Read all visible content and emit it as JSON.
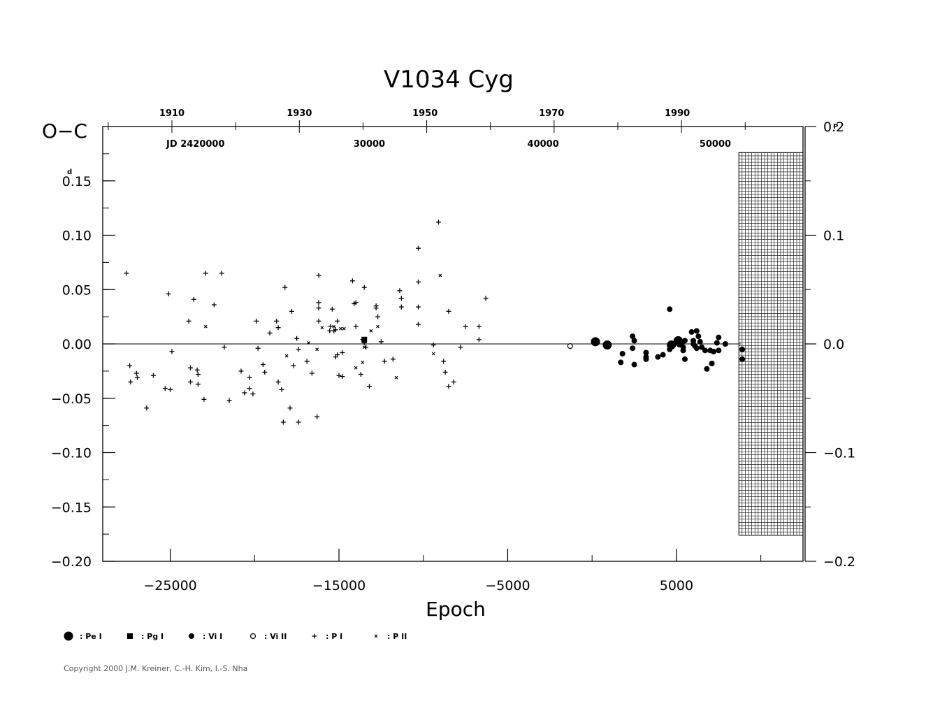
{
  "chart_data": {
    "type": "scatter",
    "title": "V1034  Cyg",
    "ylabel": "O−C",
    "ylabel_unit": "d",
    "right_unit": "P",
    "xlabel": "Epoch",
    "xlim": [
      -29000,
      12500
    ],
    "ylim": [
      -0.2,
      0.2
    ],
    "right_ylim": [
      -0.2,
      0.2
    ],
    "x_ticks": [
      {
        "value": -25000,
        "label": "−25000"
      },
      {
        "value": -15000,
        "label": "−15000"
      },
      {
        "value": -5000,
        "label": "−5000"
      },
      {
        "value": 5000,
        "label": "5000"
      }
    ],
    "y_ticks": [
      {
        "value": 0.15,
        "label": "0.15"
      },
      {
        "value": 0.1,
        "label": "0.10"
      },
      {
        "value": 0.05,
        "label": "0.05"
      },
      {
        "value": 0.0,
        "label": "0.00"
      },
      {
        "value": -0.05,
        "label": "−0.05"
      },
      {
        "value": -0.1,
        "label": "−0.10"
      },
      {
        "value": -0.15,
        "label": "−0.15"
      },
      {
        "value": -0.2,
        "label": "−0.20"
      }
    ],
    "right_ticks": [
      {
        "value": 0.2,
        "label": "0.2"
      },
      {
        "value": 0.1,
        "label": "0.1"
      },
      {
        "value": 0.0,
        "label": "0.0"
      },
      {
        "value": -0.1,
        "label": "−0.1"
      },
      {
        "value": -0.2,
        "label": "−0.2"
      }
    ],
    "year_ticks": [
      {
        "label": "1910",
        "epoch": -24900
      },
      {
        "label": "1930",
        "epoch": -17350
      },
      {
        "label": "1950",
        "epoch": -9900
      },
      {
        "label": "1970",
        "epoch": -2400
      },
      {
        "label": "1990",
        "epoch": 5050
      }
    ],
    "jd_ticks": [
      {
        "label": "JD  2420000",
        "epoch": -23500
      },
      {
        "label": "30000",
        "epoch": -13200
      },
      {
        "label": "40000",
        "epoch": -2900
      },
      {
        "label": "50000",
        "epoch": 7300
      }
    ],
    "future_region": {
      "x_start": 8700,
      "x_end": 12500,
      "y_top": 0.176,
      "y_bottom": -0.176
    },
    "legend": [
      {
        "symbol": "big-dot",
        "label": ": Pe  I"
      },
      {
        "symbol": "square",
        "label": ": Pg  I"
      },
      {
        "symbol": "dot",
        "label": ": Vi  I"
      },
      {
        "symbol": "circle",
        "label": ": Vi  II"
      },
      {
        "symbol": "plus",
        "label": ": P  I"
      },
      {
        "symbol": "cross",
        "label": ": P  II"
      }
    ],
    "series": [
      {
        "symbol": "plus",
        "points": [
          [
            -27600,
            0.065
          ],
          [
            -27400,
            -0.02
          ],
          [
            -27350,
            -0.035
          ],
          [
            -27000,
            -0.027
          ],
          [
            -26950,
            -0.031
          ],
          [
            -26400,
            -0.059
          ],
          [
            -26000,
            -0.029
          ],
          [
            -25300,
            -0.041
          ],
          [
            -25100,
            0.046
          ],
          [
            -25000,
            -0.042
          ],
          [
            -24900,
            -0.007
          ],
          [
            -23900,
            0.021
          ],
          [
            -23800,
            -0.022
          ],
          [
            -23800,
            -0.035
          ],
          [
            -23600,
            0.041
          ],
          [
            -23400,
            -0.024
          ],
          [
            -23350,
            -0.028
          ],
          [
            -23350,
            -0.037
          ],
          [
            -23000,
            -0.051
          ],
          [
            -22900,
            0.065
          ],
          [
            -22400,
            0.036
          ],
          [
            -21950,
            0.065
          ],
          [
            -21800,
            -0.003
          ],
          [
            -21500,
            -0.052
          ],
          [
            -20800,
            -0.025
          ],
          [
            -20600,
            -0.045
          ],
          [
            -20300,
            -0.031
          ],
          [
            -20300,
            -0.041
          ],
          [
            -20100,
            -0.046
          ],
          [
            -19900,
            0.021
          ],
          [
            -19800,
            -0.004
          ],
          [
            -19500,
            -0.019
          ],
          [
            -19400,
            -0.026
          ],
          [
            -19100,
            0.01
          ],
          [
            -18700,
            0.021
          ],
          [
            -18600,
            0.015
          ],
          [
            -18600,
            -0.035
          ],
          [
            -18400,
            -0.042
          ],
          [
            -18300,
            -0.072
          ],
          [
            -18200,
            0.052
          ],
          [
            -17900,
            -0.059
          ],
          [
            -17800,
            0.03
          ],
          [
            -17700,
            -0.02
          ],
          [
            -17500,
            0.005
          ],
          [
            -17400,
            -0.005
          ],
          [
            -17400,
            -0.072
          ],
          [
            -16900,
            -0.016
          ],
          [
            -16600,
            -0.027
          ],
          [
            -16300,
            -0.067
          ],
          [
            -16200,
            0.063
          ],
          [
            -16200,
            0.038
          ],
          [
            -16200,
            0.033
          ],
          [
            -16200,
            0.021
          ],
          [
            -15400,
            0.032
          ],
          [
            -15550,
            0.012
          ],
          [
            -15500,
            0.016
          ],
          [
            -15300,
            0.012
          ],
          [
            -15200,
            0.013
          ],
          [
            -15100,
            0.021
          ],
          [
            -15200,
            -0.012
          ],
          [
            -15100,
            -0.01
          ],
          [
            -15000,
            -0.029
          ],
          [
            -14800,
            -0.03
          ],
          [
            -14800,
            -0.008
          ],
          [
            -14200,
            0.058
          ],
          [
            -14100,
            0.037
          ],
          [
            -14000,
            0.038
          ],
          [
            -14000,
            0.016
          ],
          [
            -13700,
            -0.028
          ],
          [
            -13500,
            0.052
          ],
          [
            -13600,
            0.004
          ],
          [
            -13500,
            0.001
          ],
          [
            -13400,
            -0.003
          ],
          [
            -13200,
            -0.039
          ],
          [
            -12800,
            0.035
          ],
          [
            -12800,
            0.033
          ],
          [
            -12700,
            0.025
          ],
          [
            -12500,
            0.002
          ],
          [
            -12300,
            -0.016
          ],
          [
            -11800,
            -0.014
          ],
          [
            -11400,
            0.049
          ],
          [
            -11300,
            0.042
          ],
          [
            -11300,
            0.034
          ],
          [
            -10300,
            0.088
          ],
          [
            -10300,
            0.057
          ],
          [
            -10300,
            0.034
          ],
          [
            -10300,
            0.018
          ],
          [
            -9400,
            -0.001
          ],
          [
            -8800,
            -0.016
          ],
          [
            -8700,
            -0.026
          ],
          [
            -8500,
            -0.039
          ],
          [
            -8500,
            0.03
          ],
          [
            -8200,
            -0.035
          ],
          [
            -7800,
            -0.003
          ],
          [
            -7500,
            0.016
          ],
          [
            -6700,
            0.004
          ],
          [
            -6700,
            0.016
          ],
          [
            -6300,
            0.042
          ],
          [
            -9100,
            0.112
          ]
        ]
      },
      {
        "symbol": "cross",
        "points": [
          [
            -22900,
            0.016
          ],
          [
            -18100,
            -0.011
          ],
          [
            -16800,
            0.001
          ],
          [
            -16300,
            -0.005
          ],
          [
            -16000,
            0.015
          ],
          [
            -15300,
            0.016
          ],
          [
            -14900,
            0.014
          ],
          [
            -14700,
            0.014
          ],
          [
            -14000,
            -0.022
          ],
          [
            -13600,
            -0.017
          ],
          [
            -13500,
            -0.003
          ],
          [
            -13100,
            0.012
          ],
          [
            -11600,
            -0.031
          ],
          [
            -9400,
            -0.009
          ],
          [
            -9000,
            0.063
          ],
          [
            -12700,
            0.016
          ]
        ]
      },
      {
        "symbol": "square",
        "points": [
          [
            -13500,
            0.004
          ]
        ]
      },
      {
        "symbol": "circle",
        "points": [
          [
            -1300,
            -0.002
          ]
        ]
      },
      {
        "symbol": "big-dot",
        "points": [
          [
            200,
            0.002
          ],
          [
            900,
            -0.001
          ],
          [
            5100,
            0.003
          ],
          [
            5200,
            0.001
          ],
          [
            4700,
            -0.001
          ]
        ]
      },
      {
        "symbol": "dot",
        "points": [
          [
            1800,
            -0.009
          ],
          [
            1700,
            -0.017
          ],
          [
            2400,
            0.007
          ],
          [
            2500,
            0.003
          ],
          [
            2400,
            -0.004
          ],
          [
            2500,
            -0.019
          ],
          [
            3200,
            -0.008
          ],
          [
            3200,
            -0.014
          ],
          [
            3200,
            -0.012
          ],
          [
            3900,
            -0.012
          ],
          [
            4200,
            -0.01
          ],
          [
            4600,
            -0.005
          ],
          [
            4600,
            0.032
          ],
          [
            5500,
            0.003
          ],
          [
            5400,
            -0.003
          ],
          [
            5400,
            -0.006
          ],
          [
            5500,
            -0.014
          ],
          [
            5900,
            0.011
          ],
          [
            6000,
            0.0
          ],
          [
            6000,
            0.003
          ],
          [
            6200,
            0.012
          ],
          [
            6300,
            0.007
          ],
          [
            6100,
            -0.002
          ],
          [
            6200,
            -0.004
          ],
          [
            6400,
            0.002
          ],
          [
            6500,
            -0.003
          ],
          [
            6700,
            -0.006
          ],
          [
            6800,
            -0.023
          ],
          [
            7100,
            -0.018
          ],
          [
            7000,
            -0.006
          ],
          [
            7200,
            -0.007
          ],
          [
            7500,
            -0.006
          ],
          [
            7400,
            0.001
          ],
          [
            7500,
            0.006
          ],
          [
            7900,
            0.0
          ],
          [
            8900,
            -0.005
          ],
          [
            8900,
            -0.014
          ]
        ]
      }
    ]
  },
  "copyright": "Copyright 2000 J.M. Kreiner, C.-H. Kim, I.-S. Nha"
}
